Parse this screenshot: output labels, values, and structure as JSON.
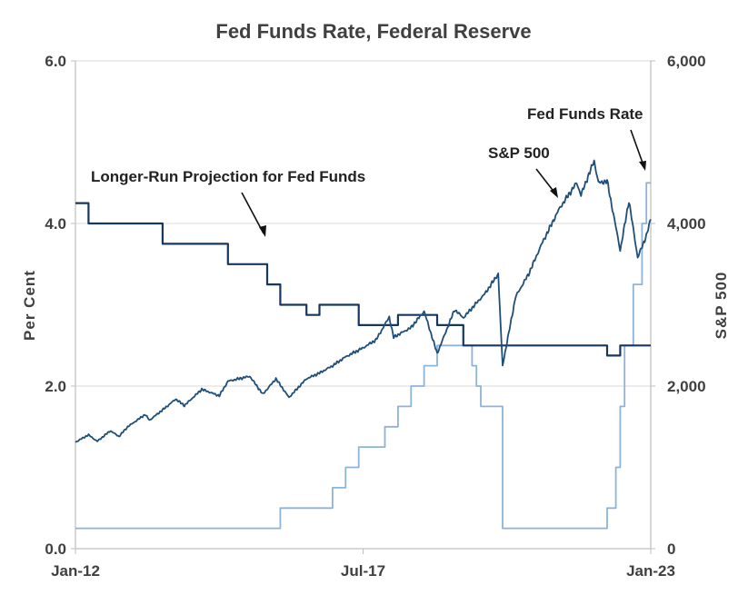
{
  "chart_data": {
    "type": "line",
    "title": "Fed Funds Rate, Federal Reserve",
    "ylabel": "Per Cent",
    "y2label": "S&P 500",
    "xlabel": "",
    "ylim": [
      0,
      6
    ],
    "y2lim": [
      0,
      6000
    ],
    "yticks": [
      "0.0",
      "2.0",
      "4.0",
      "6.0"
    ],
    "y2ticks": [
      "0",
      "2,000",
      "4,000",
      "6,000"
    ],
    "xlim": [
      "2012-01",
      "2023-01"
    ],
    "xticks": [
      {
        "date": "2012-01",
        "label": "Jan-12"
      },
      {
        "date": "2017-07",
        "label": "Jul-17"
      },
      {
        "date": "2023-01",
        "label": "Jan-23"
      }
    ],
    "grid": "horizontal",
    "colors": {
      "sp500": "#1f4e79",
      "longrun": "#17375e",
      "fedfunds": "#8db3d9",
      "grid": "#d9d9d9",
      "axis": "#bfbfbf"
    },
    "annotations": [
      {
        "text": "Longer-Run Projection for Fed Funds",
        "target_series": "longrun"
      },
      {
        "text": "S&P 500",
        "target_series": "sp500"
      },
      {
        "text": "Fed Funds Rate",
        "target_series": "fedfunds"
      }
    ],
    "series": [
      {
        "key": "longrun",
        "axis": "left",
        "step": true,
        "points": [
          [
            "2012-01",
            4.25
          ],
          [
            "2012-04",
            4.0
          ],
          [
            "2013-09",
            3.75
          ],
          [
            "2014-12",
            3.5
          ],
          [
            "2015-09",
            3.25
          ],
          [
            "2015-12",
            3.0
          ],
          [
            "2016-06",
            2.875
          ],
          [
            "2016-09",
            3.0
          ],
          [
            "2017-06",
            2.75
          ],
          [
            "2018-03",
            2.875
          ],
          [
            "2018-12",
            2.75
          ],
          [
            "2019-06",
            2.5
          ],
          [
            "2022-03",
            2.375
          ],
          [
            "2022-06",
            2.5
          ],
          [
            "2022-12",
            2.5
          ]
        ]
      },
      {
        "key": "fedfunds",
        "axis": "left",
        "step": true,
        "points": [
          [
            "2012-01",
            0.25
          ],
          [
            "2015-12",
            0.5
          ],
          [
            "2016-12",
            0.75
          ],
          [
            "2017-03",
            1.0
          ],
          [
            "2017-06",
            1.25
          ],
          [
            "2017-12",
            1.5
          ],
          [
            "2018-03",
            1.75
          ],
          [
            "2018-06",
            2.0
          ],
          [
            "2018-09",
            2.25
          ],
          [
            "2018-12",
            2.5
          ],
          [
            "2019-08",
            2.25
          ],
          [
            "2019-09",
            2.0
          ],
          [
            "2019-10",
            1.75
          ],
          [
            "2020-03",
            1.25
          ],
          [
            "2020-03",
            0.25
          ],
          [
            "2022-03",
            0.5
          ],
          [
            "2022-05",
            1.0
          ],
          [
            "2022-06",
            1.75
          ],
          [
            "2022-07",
            2.5
          ],
          [
            "2022-09",
            3.25
          ],
          [
            "2022-11",
            4.0
          ],
          [
            "2022-12",
            4.5
          ]
        ]
      },
      {
        "key": "sp500",
        "axis": "right",
        "step": false,
        "points": [
          [
            "2012-01",
            1310
          ],
          [
            "2012-04",
            1400
          ],
          [
            "2012-06",
            1320
          ],
          [
            "2012-09",
            1450
          ],
          [
            "2012-11",
            1380
          ],
          [
            "2013-01",
            1500
          ],
          [
            "2013-05",
            1650
          ],
          [
            "2013-06",
            1580
          ],
          [
            "2013-10",
            1750
          ],
          [
            "2013-12",
            1840
          ],
          [
            "2014-02",
            1760
          ],
          [
            "2014-06",
            1960
          ],
          [
            "2014-10",
            1880
          ],
          [
            "2014-12",
            2060
          ],
          [
            "2015-05",
            2120
          ],
          [
            "2015-08",
            1900
          ],
          [
            "2015-11",
            2090
          ],
          [
            "2016-02",
            1860
          ],
          [
            "2016-06",
            2090
          ],
          [
            "2016-09",
            2160
          ],
          [
            "2016-12",
            2250
          ],
          [
            "2017-03",
            2360
          ],
          [
            "2017-07",
            2470
          ],
          [
            "2017-10",
            2570
          ],
          [
            "2018-01",
            2850
          ],
          [
            "2018-02",
            2600
          ],
          [
            "2018-06",
            2720
          ],
          [
            "2018-09",
            2920
          ],
          [
            "2018-12",
            2400
          ],
          [
            "2019-04",
            2940
          ],
          [
            "2019-06",
            2840
          ],
          [
            "2019-11",
            3140
          ],
          [
            "2020-02",
            3380
          ],
          [
            "2020-03",
            2250
          ],
          [
            "2020-06",
            3100
          ],
          [
            "2020-09",
            3380
          ],
          [
            "2020-12",
            3750
          ],
          [
            "2021-04",
            4180
          ],
          [
            "2021-08",
            4500
          ],
          [
            "2021-09",
            4350
          ],
          [
            "2021-12",
            4770
          ],
          [
            "2022-01",
            4500
          ],
          [
            "2022-03",
            4520
          ],
          [
            "2022-06",
            3670
          ],
          [
            "2022-08",
            4280
          ],
          [
            "2022-10",
            3580
          ],
          [
            "2022-12",
            3850
          ],
          [
            "2023-01",
            4050
          ]
        ]
      }
    ]
  }
}
